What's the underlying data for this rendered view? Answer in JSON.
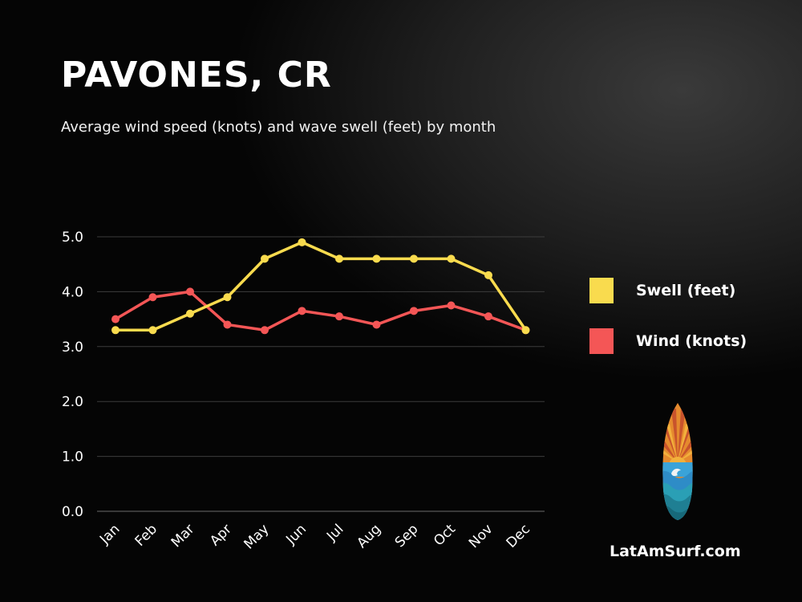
{
  "header": {
    "title": "PAVONES, CR",
    "subtitle": "Average wind speed (knots) and wave swell (feet) by month"
  },
  "legend": {
    "swell": {
      "label": "Swell (feet)",
      "color": "#F9DB4E"
    },
    "wind": {
      "label": "Wind (knots)",
      "color": "#F45656"
    }
  },
  "brand": {
    "text": "LatAmSurf.com",
    "logo_icon": "surfboard-sunset-wave-logo"
  },
  "chart_data": {
    "type": "line",
    "categories": [
      "Jan",
      "Feb",
      "Mar",
      "Apr",
      "May",
      "Jun",
      "Jul",
      "Aug",
      "Sep",
      "Oct",
      "Nov",
      "Dec"
    ],
    "series": [
      {
        "name": "Swell (feet)",
        "color": "#F9DB4E",
        "values": [
          3.3,
          3.3,
          3.6,
          3.9,
          4.6,
          4.9,
          4.6,
          4.6,
          4.6,
          4.6,
          4.3,
          3.3
        ]
      },
      {
        "name": "Wind (knots)",
        "color": "#F45656",
        "values": [
          3.5,
          3.9,
          4.0,
          3.4,
          3.3,
          3.65,
          3.55,
          3.4,
          3.65,
          3.75,
          3.55,
          3.3
        ]
      }
    ],
    "yticks": [
      "0.0",
      "1.0",
      "2.0",
      "3.0",
      "4.0",
      "5.0"
    ],
    "ylim": [
      0,
      5
    ],
    "grid": true,
    "legend_position": "right"
  }
}
